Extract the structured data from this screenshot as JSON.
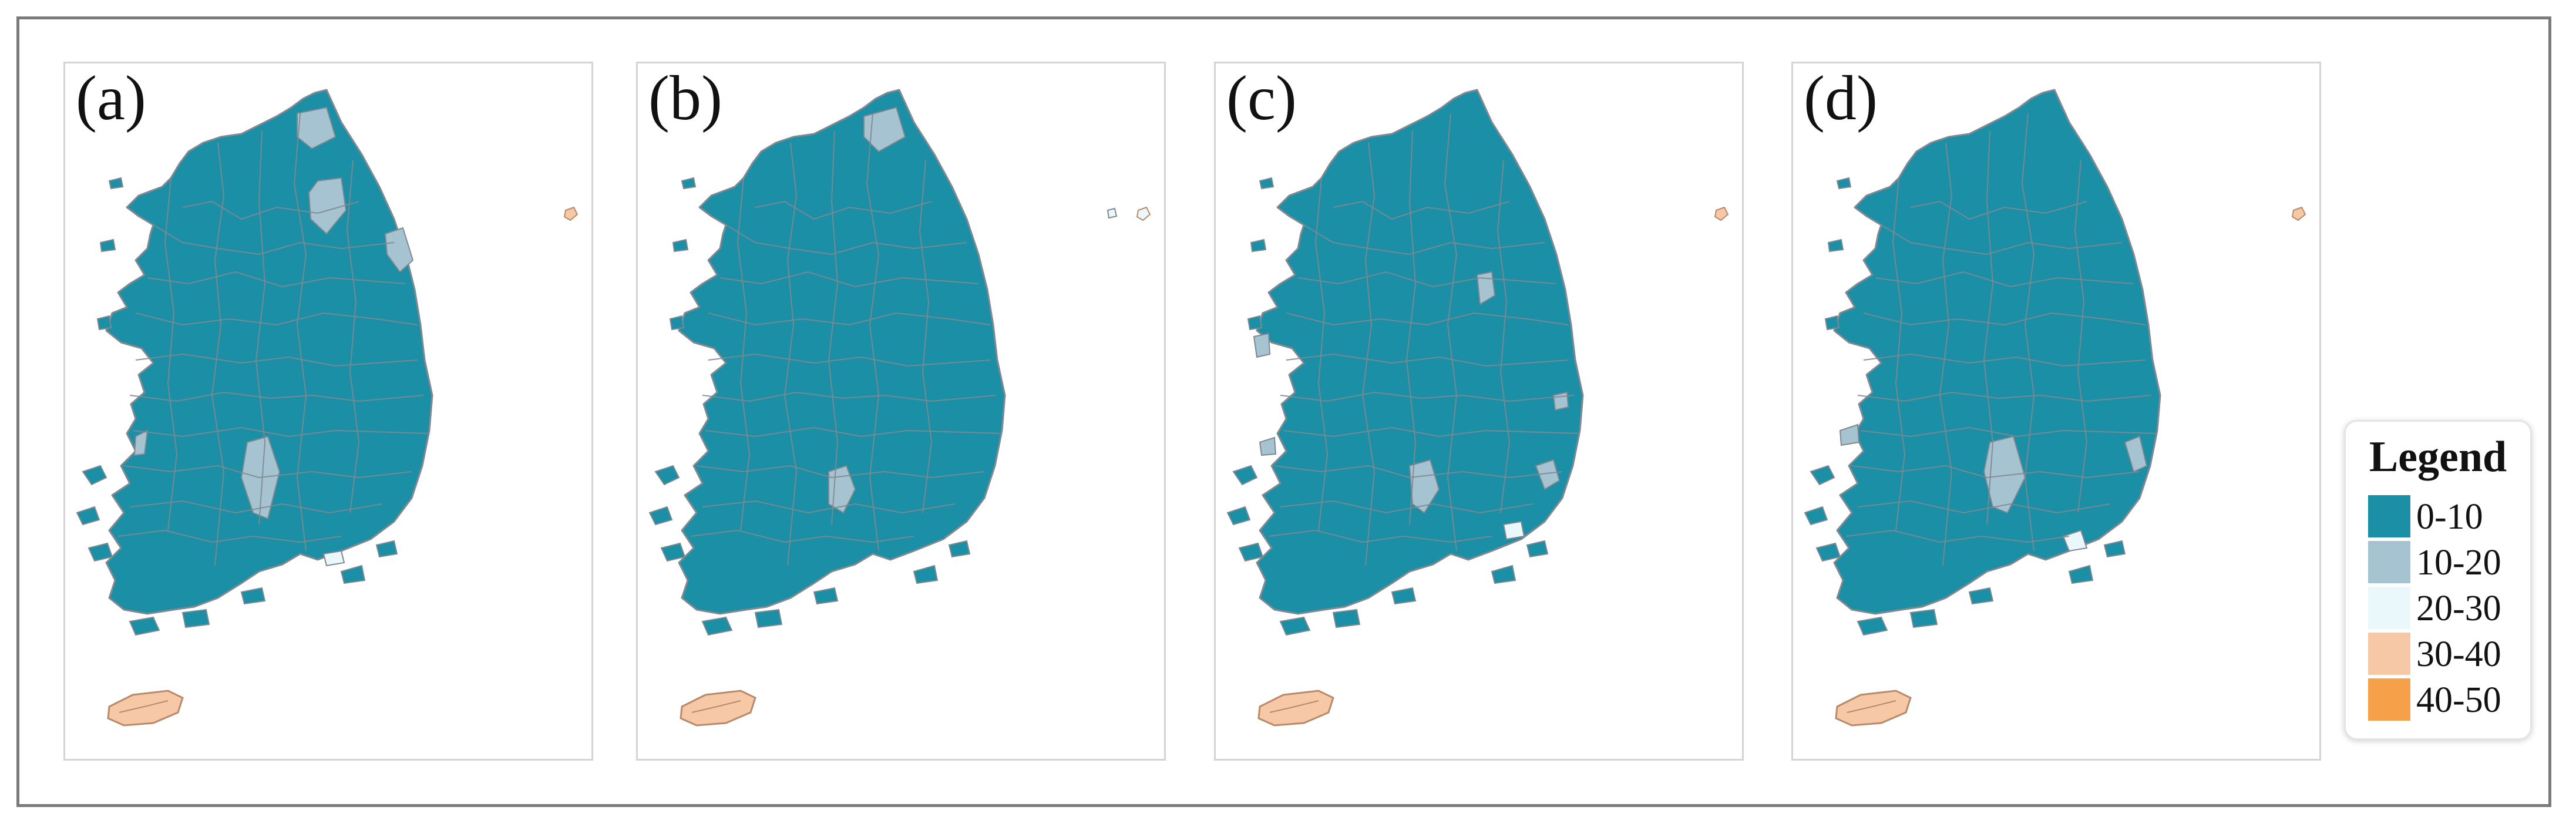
{
  "panels": [
    {
      "label": "(a)",
      "island_class": "30-40"
    },
    {
      "label": "(b)",
      "island_class": "20-30"
    },
    {
      "label": "(c)",
      "island_class": "30-40"
    },
    {
      "label": "(d)",
      "island_class": "30-40"
    }
  ],
  "legend": {
    "title": "Legend",
    "items": [
      {
        "label": "0-10",
        "color": "#1b8fa6"
      },
      {
        "label": "10-20",
        "color": "#a6c3d1"
      },
      {
        "label": "20-30",
        "color": "#eaf8fb"
      },
      {
        "label": "30-40",
        "color": "#f6c8a6"
      },
      {
        "label": "40-50",
        "color": "#f7a04a"
      }
    ]
  },
  "colors": {
    "border": "#808890",
    "jeju": "#f6c8a6"
  }
}
